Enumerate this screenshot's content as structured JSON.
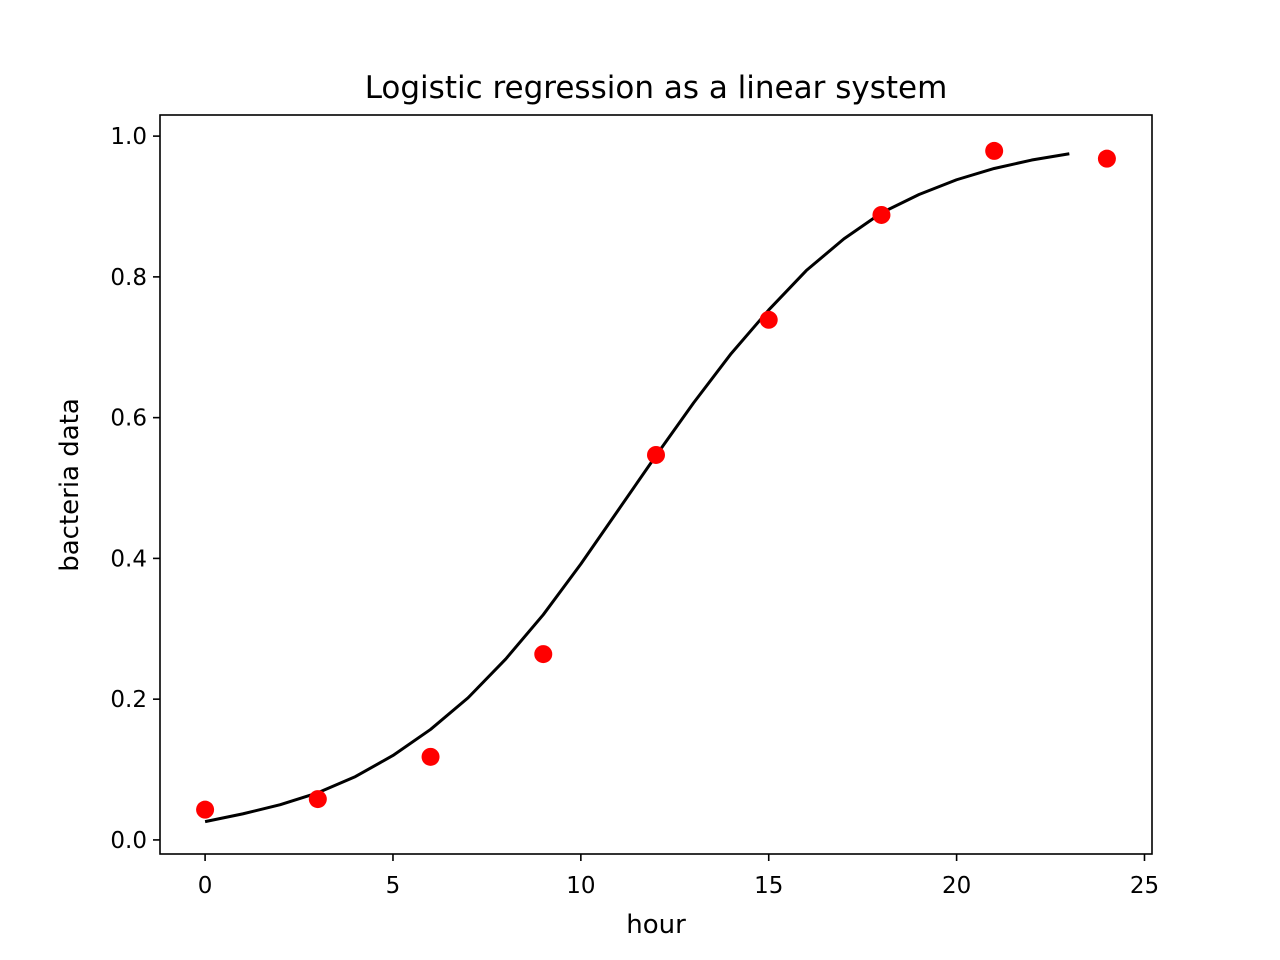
{
  "chart_data": {
    "type": "line",
    "title": "Logistic regression as a linear system",
    "xlabel": "hour",
    "ylabel": "bacteria data",
    "xlim": [
      -1.2,
      25.2
    ],
    "ylim": [
      -0.02,
      1.03
    ],
    "grid": false,
    "x_ticks": [
      0,
      5,
      10,
      15,
      20,
      25
    ],
    "x_tick_labels": [
      "0",
      "5",
      "10",
      "15",
      "20",
      "25"
    ],
    "y_ticks": [
      0,
      0.2,
      0.4,
      0.6,
      0.8,
      1.0
    ],
    "y_tick_labels": [
      "0.0",
      "0.2",
      "0.4",
      "0.6",
      "0.8",
      "1.0"
    ],
    "series": [
      {
        "kind": "line",
        "color": "#000000",
        "x": [
          0,
          1,
          2,
          3,
          4,
          5,
          6,
          7,
          8,
          9,
          10,
          11,
          12,
          13,
          14,
          15,
          16,
          17,
          18,
          19,
          20,
          21,
          22,
          23
        ],
        "y": [
          0.026,
          0.037,
          0.05,
          0.067,
          0.09,
          0.12,
          0.157,
          0.202,
          0.257,
          0.32,
          0.392,
          0.469,
          0.546,
          0.621,
          0.691,
          0.753,
          0.809,
          0.854,
          0.891,
          0.917,
          0.938,
          0.954,
          0.966,
          0.975
        ]
      },
      {
        "kind": "scatter",
        "color": "#ff0000",
        "x": [
          0,
          3,
          6,
          9,
          12,
          15,
          18,
          21,
          24
        ],
        "y": [
          0.043,
          0.058,
          0.118,
          0.264,
          0.547,
          0.739,
          0.888,
          0.979,
          0.968
        ]
      }
    ]
  }
}
